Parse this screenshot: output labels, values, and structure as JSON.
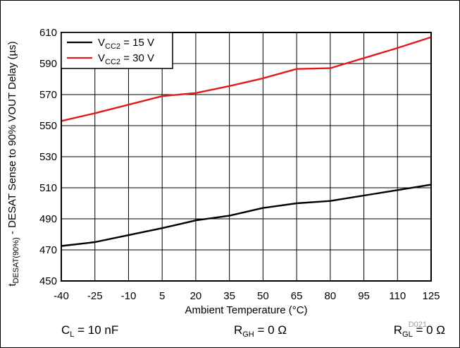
{
  "chart_data": {
    "type": "line",
    "x": [
      -40,
      -25,
      -10,
      5,
      20,
      35,
      50,
      65,
      80,
      95,
      110,
      125
    ],
    "series": [
      {
        "name": "V_CC2 = 15 V",
        "name_parts": {
          "prefix": "V",
          "sub": "CC2",
          "suffix": " = 15 V"
        },
        "color": "#000000",
        "points": [
          [
            -40,
            472.5
          ],
          [
            -25,
            475
          ],
          [
            -10,
            479.5
          ],
          [
            5,
            484
          ],
          [
            20,
            489
          ],
          [
            35,
            492
          ],
          [
            50,
            497
          ],
          [
            65,
            500
          ],
          [
            80,
            501.5
          ],
          [
            95,
            505
          ],
          [
            110,
            508.5
          ],
          [
            125,
            512
          ]
        ]
      },
      {
        "name": "V_CC2 = 30 V",
        "name_parts": {
          "prefix": "V",
          "sub": "CC2",
          "suffix": " = 30 V"
        },
        "color": "#e31a1c",
        "points": [
          [
            -40,
            553
          ],
          [
            -25,
            558
          ],
          [
            -10,
            563.5
          ],
          [
            5,
            569
          ],
          [
            20,
            571
          ],
          [
            35,
            575.5
          ],
          [
            50,
            580.5
          ],
          [
            65,
            586.5
          ],
          [
            80,
            587
          ],
          [
            95,
            593.5
          ],
          [
            110,
            600
          ],
          [
            125,
            607
          ]
        ]
      }
    ],
    "xlim": [
      -40,
      125
    ],
    "ylim": [
      450,
      610
    ],
    "x_ticks": [
      "-40",
      "-25",
      "-10",
      "5",
      "20",
      "35",
      "50",
      "65",
      "80",
      "95",
      "110",
      "125"
    ],
    "y_ticks": [
      "450",
      "470",
      "490",
      "510",
      "530",
      "550",
      "570",
      "590",
      "610"
    ],
    "xlabel": "Ambient Temperature (°C)",
    "ylabel_parts": {
      "prefix": "t",
      "sub": "DESAT(90%)",
      "suffix": " - DESAT Sense to 90% VOUT Delay (µs)"
    },
    "grid": true,
    "legend_position": "top-left",
    "figure_id": "D021",
    "conditions": [
      {
        "prefix": "C",
        "sub": "L",
        "suffix": " = 10 nF"
      },
      {
        "prefix": "R",
        "sub": "GH",
        "suffix": " = 0 Ω"
      },
      {
        "prefix": "R",
        "sub": "GL",
        "suffix": " = 0 Ω"
      }
    ]
  }
}
